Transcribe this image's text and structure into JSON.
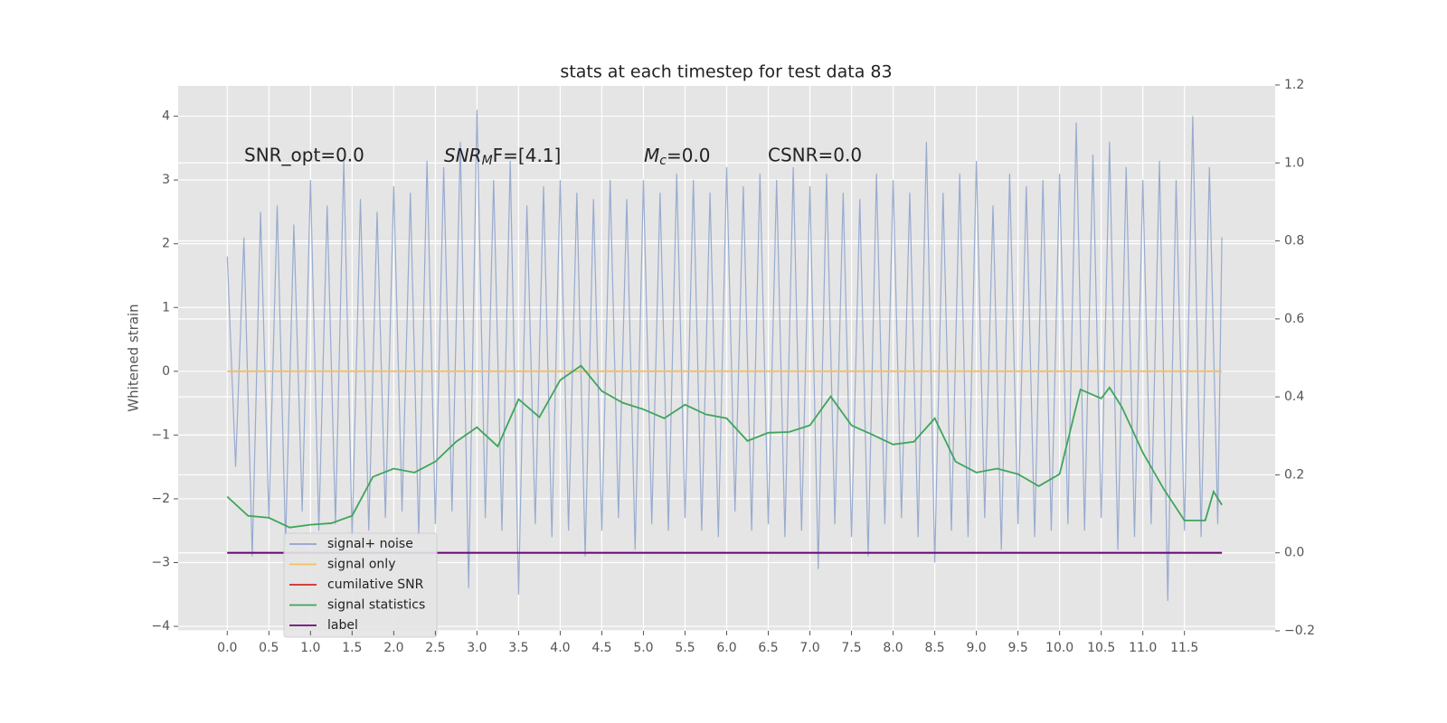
{
  "chart_data": {
    "type": "line",
    "title": "stats at each timestep for test data 83",
    "y_label": "Whitened strain",
    "xlim": [
      -0.59,
      12.59
    ],
    "ylim": [
      -4.07,
      4.49
    ],
    "y2lim": [
      -0.2,
      1.2
    ],
    "xticks": [
      {
        "value": 0,
        "label": "0.0"
      },
      0.5,
      {
        "value": 1,
        "label": "1.0"
      },
      1.5,
      {
        "value": 2,
        "label": "2.0"
      },
      2.5,
      {
        "value": 3,
        "label": "3.0"
      },
      3.5,
      {
        "value": 4,
        "label": "4.0"
      },
      4.5,
      {
        "value": 5,
        "label": "5.0"
      },
      5.5,
      {
        "value": 6,
        "label": "6.0"
      },
      6.5,
      {
        "value": 7,
        "label": "7.0"
      },
      7.5,
      {
        "value": 8,
        "label": "8.0"
      },
      8.5,
      {
        "value": 9,
        "label": "9.0"
      },
      9.5,
      {
        "value": 10,
        "label": "10.0"
      },
      10.5,
      {
        "value": 11,
        "label": "11.0"
      },
      11.5
    ],
    "yticks": [
      {
        "value": -4,
        "label": "−4"
      },
      {
        "value": -3,
        "label": "−3"
      },
      {
        "value": -2,
        "label": "−2"
      },
      {
        "value": -1,
        "label": "−1"
      },
      0,
      1,
      2,
      3,
      4
    ],
    "y2ticks": [
      {
        "value": -0.2,
        "label": "−0.2"
      },
      {
        "value": 0,
        "label": "0.0"
      },
      0.2,
      0.4,
      0.6,
      0.8,
      {
        "value": 1,
        "label": "1.0"
      },
      1.2
    ],
    "grid": true,
    "legend": "lower left",
    "annotations": [
      {
        "text": "SNR_opt=0.0"
      },
      {
        "base": "SNR",
        "sub": "M",
        "tail": "F=[4.1]"
      },
      {
        "base": "M",
        "sub": "c",
        "tail": "=0.0"
      },
      {
        "text": "CSNR=0.0"
      }
    ],
    "series": [
      {
        "name": "signal+ noise",
        "color": "#8fa4cc",
        "axis": "y",
        "x": [
          0,
          0.1,
          0.2,
          0.3,
          0.4,
          0.5,
          0.6,
          0.7,
          0.8,
          0.9,
          1,
          1.1,
          1.2,
          1.3,
          1.4,
          1.5,
          1.6,
          1.7,
          1.8,
          1.9,
          2,
          2.1,
          2.2,
          2.3,
          2.4,
          2.5,
          2.6,
          2.7,
          2.8,
          2.9,
          3,
          3.1,
          3.2,
          3.3,
          3.4,
          3.5,
          3.6,
          3.7,
          3.8,
          3.9,
          4,
          4.1,
          4.2,
          4.3,
          4.4,
          4.5,
          4.6,
          4.7,
          4.8,
          4.9,
          5,
          5.1,
          5.2,
          5.3,
          5.4,
          5.5,
          5.6,
          5.7,
          5.8,
          5.9,
          6,
          6.1,
          6.2,
          6.3,
          6.4,
          6.5,
          6.6,
          6.7,
          6.8,
          6.9,
          7,
          7.1,
          7.2,
          7.3,
          7.4,
          7.5,
          7.6,
          7.7,
          7.8,
          7.9,
          8,
          8.1,
          8.2,
          8.3,
          8.4,
          8.5,
          8.6,
          8.7,
          8.8,
          8.9,
          9,
          9.1,
          9.2,
          9.3,
          9.4,
          9.5,
          9.6,
          9.7,
          9.8,
          9.9,
          10,
          10.1,
          10.2,
          10.3,
          10.4,
          10.5,
          10.6,
          10.7,
          10.8,
          10.9,
          11,
          11.1,
          11.2,
          11.3,
          11.4,
          11.5,
          11.6,
          11.7,
          11.8,
          11.9,
          11.95
        ],
        "values": [
          1.8,
          -1.5,
          2.1,
          -2.9,
          2.5,
          -2.3,
          2.6,
          -2.7,
          2.3,
          -2.2,
          3.0,
          -2.5,
          2.6,
          -2.4,
          3.3,
          -2.6,
          2.7,
          -2.5,
          2.5,
          -2.3,
          2.9,
          -2.2,
          2.8,
          -2.6,
          3.3,
          -2.4,
          3.2,
          -2.2,
          3.6,
          -3.4,
          4.1,
          -2.3,
          3.0,
          -2.5,
          3.3,
          -3.5,
          2.6,
          -2.4,
          2.9,
          -2.6,
          3.0,
          -2.5,
          2.8,
          -2.9,
          2.7,
          -2.5,
          3.0,
          -2.3,
          2.7,
          -2.8,
          3.0,
          -2.4,
          2.8,
          -2.5,
          3.1,
          -2.3,
          3.0,
          -2.5,
          2.8,
          -2.6,
          3.2,
          -2.2,
          2.9,
          -2.5,
          3.1,
          -2.4,
          3.0,
          -2.6,
          3.2,
          -2.5,
          2.9,
          -3.1,
          3.1,
          -2.4,
          2.8,
          -2.6,
          2.7,
          -2.9,
          3.1,
          -2.4,
          3.0,
          -2.3,
          2.8,
          -2.6,
          3.6,
          -3.0,
          2.8,
          -2.5,
          3.1,
          -2.6,
          3.3,
          -2.3,
          2.6,
          -2.8,
          3.1,
          -2.4,
          2.9,
          -2.6,
          3.0,
          -2.5,
          3.1,
          -2.4,
          3.9,
          -2.5,
          3.4,
          -2.3,
          3.6,
          -2.8,
          3.2,
          -2.6,
          3.0,
          -2.4,
          3.3,
          -3.6,
          3.0,
          -2.5,
          4.0,
          -2.6,
          3.2,
          -2.4,
          2.1
        ]
      },
      {
        "name": "signal only",
        "color": "#f2c065",
        "axis": "y",
        "x": [
          0,
          11.95
        ],
        "values": [
          0,
          0
        ]
      },
      {
        "name": "cumilative SNR",
        "color": "#d62728",
        "axis": "y2",
        "x": [
          0,
          11.95
        ],
        "values": [
          0,
          0
        ]
      },
      {
        "name": "signal statistics",
        "color": "#3ea55a",
        "axis": "y2",
        "x": [
          0,
          0.25,
          0.5,
          0.75,
          1,
          1.25,
          1.5,
          1.75,
          2,
          2.25,
          2.5,
          2.75,
          3,
          3.25,
          3.5,
          3.75,
          4,
          4.25,
          4.5,
          4.75,
          5,
          5.25,
          5.5,
          5.75,
          6,
          6.25,
          6.5,
          6.75,
          7,
          7.25,
          7.5,
          7.75,
          8,
          8.25,
          8.5,
          8.75,
          9,
          9.25,
          9.5,
          9.75,
          10,
          10.25,
          10.5,
          10.6,
          10.75,
          11,
          11.25,
          11.5,
          11.75,
          11.85,
          11.95
        ],
        "values": [
          0.144,
          0.095,
          0.09,
          0.065,
          0.072,
          0.076,
          0.095,
          0.195,
          0.216,
          0.206,
          0.234,
          0.285,
          0.322,
          0.273,
          0.394,
          0.348,
          0.443,
          0.48,
          0.415,
          0.385,
          0.368,
          0.345,
          0.38,
          0.355,
          0.345,
          0.287,
          0.308,
          0.31,
          0.327,
          0.401,
          0.327,
          0.303,
          0.278,
          0.285,
          0.345,
          0.234,
          0.206,
          0.216,
          0.202,
          0.171,
          0.202,
          0.419,
          0.396,
          0.424,
          0.373,
          0.257,
          0.164,
          0.083,
          0.083,
          0.157,
          0.123
        ]
      },
      {
        "name": "label",
        "color": "#6a0a7a",
        "axis": "y2",
        "x": [
          0,
          11.95
        ],
        "values": [
          0,
          0
        ]
      }
    ]
  }
}
